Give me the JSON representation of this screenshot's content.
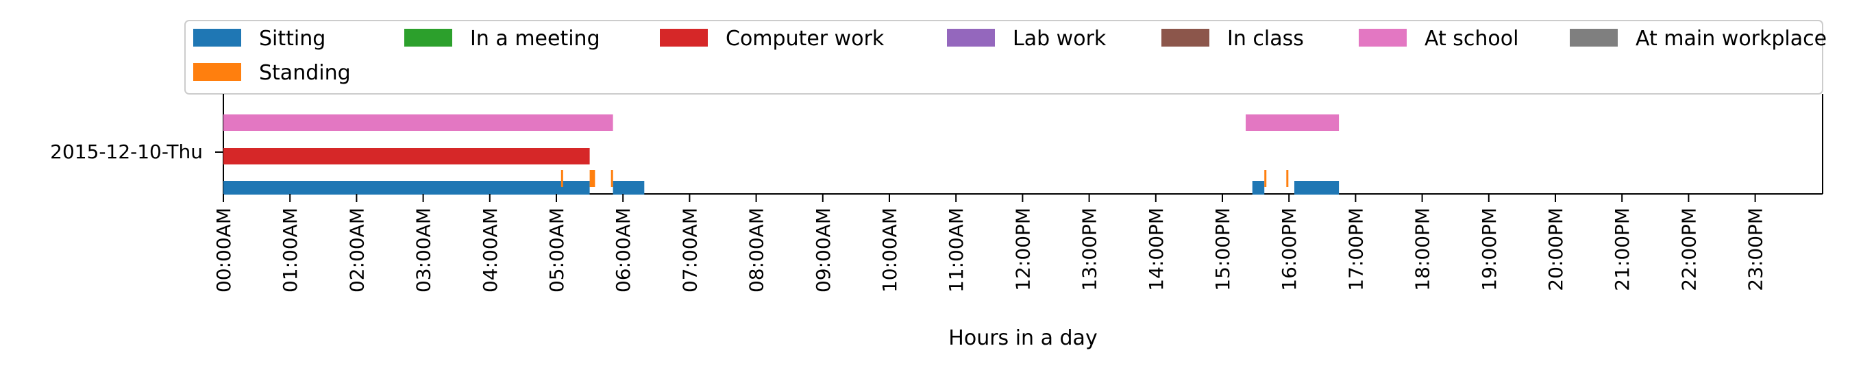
{
  "chart_data": {
    "type": "timeline",
    "xlabel": "Hours in a day",
    "ylabel": "",
    "x_ticks": [
      "00:00AM",
      "01:00AM",
      "02:00AM",
      "03:00AM",
      "04:00AM",
      "05:00AM",
      "06:00AM",
      "07:00AM",
      "08:00AM",
      "09:00AM",
      "10:00AM",
      "11:00AM",
      "12:00PM",
      "13:00PM",
      "14:00PM",
      "15:00PM",
      "16:00PM",
      "17:00PM",
      "18:00PM",
      "19:00PM",
      "20:00PM",
      "21:00PM",
      "22:00PM",
      "23:00PM"
    ],
    "xlim": [
      0,
      24
    ],
    "y_category": "2015-12-10-Thu",
    "legend_position": "top",
    "series": [
      {
        "name": "Sitting",
        "color": "#1f77b4",
        "row": 0,
        "intervals": [
          [
            0.0,
            5.5
          ],
          [
            5.85,
            6.32
          ],
          [
            15.45,
            15.63
          ],
          [
            16.08,
            16.75
          ]
        ]
      },
      {
        "name": "Standing",
        "color": "#ff7f0e",
        "row": 0,
        "intervals": [
          [
            5.07,
            5.1
          ],
          [
            5.5,
            5.58
          ],
          [
            5.82,
            5.85
          ],
          [
            15.63,
            15.66
          ],
          [
            15.96,
            15.99
          ]
        ]
      },
      {
        "name": "In a meeting",
        "color": "#2ca02c",
        "row": 1,
        "intervals": []
      },
      {
        "name": "Computer work",
        "color": "#d62728",
        "row": 1,
        "intervals": [
          [
            0.0,
            5.5
          ]
        ]
      },
      {
        "name": "Lab work",
        "color": "#9467bd",
        "row": 1,
        "intervals": []
      },
      {
        "name": "In class",
        "color": "#8c564b",
        "row": 1,
        "intervals": []
      },
      {
        "name": "At school",
        "color": "#e377c2",
        "row": 2,
        "intervals": [
          [
            0.0,
            5.85
          ],
          [
            15.35,
            16.75
          ]
        ]
      },
      {
        "name": "At main workplace",
        "color": "#7f7f7f",
        "row": 2,
        "intervals": []
      }
    ]
  }
}
